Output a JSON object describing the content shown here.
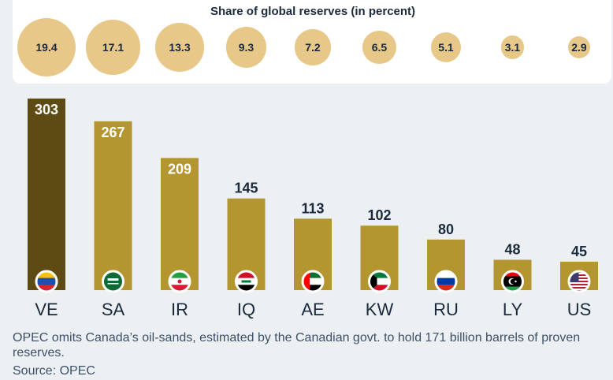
{
  "colors": {
    "background": "#ecf0f3",
    "bar_highlight": "#5e4b14",
    "bar": "#b39630",
    "bubble": "#e8c888",
    "bar_label_inside": "#ffffff",
    "bar_label_outside": "#1b2a3c"
  },
  "share_title": "Share of global reserves (in percent)",
  "footnote": "OPEC omits Canada’s oil-sands, estimated by the Canadian govt. to hold 171 billion barrels of proven reserves.",
  "source": "Source: OPEC",
  "chart_data": {
    "type": "bar",
    "categories": [
      "VE",
      "SA",
      "IR",
      "IQ",
      "AE",
      "KW",
      "RU",
      "LY",
      "US"
    ],
    "values": [
      303,
      267,
      209,
      145,
      113,
      102,
      80,
      48,
      45
    ],
    "share_percent": [
      "19.4",
      "17.1",
      "13.3",
      "9.3",
      "7.2",
      "6.5",
      "5.1",
      "3.1",
      "2.9"
    ],
    "flags": [
      "venezuela-flag",
      "saudi-arabia-flag",
      "iran-flag",
      "iraq-flag",
      "uae-flag",
      "kuwait-flag",
      "russia-flag",
      "libya-flag",
      "usa-flag"
    ],
    "highlighted_category": "VE",
    "title": "",
    "xlabel": "",
    "ylabel": "",
    "ylim": [
      0,
      303
    ],
    "grid": false,
    "legend": "none"
  }
}
